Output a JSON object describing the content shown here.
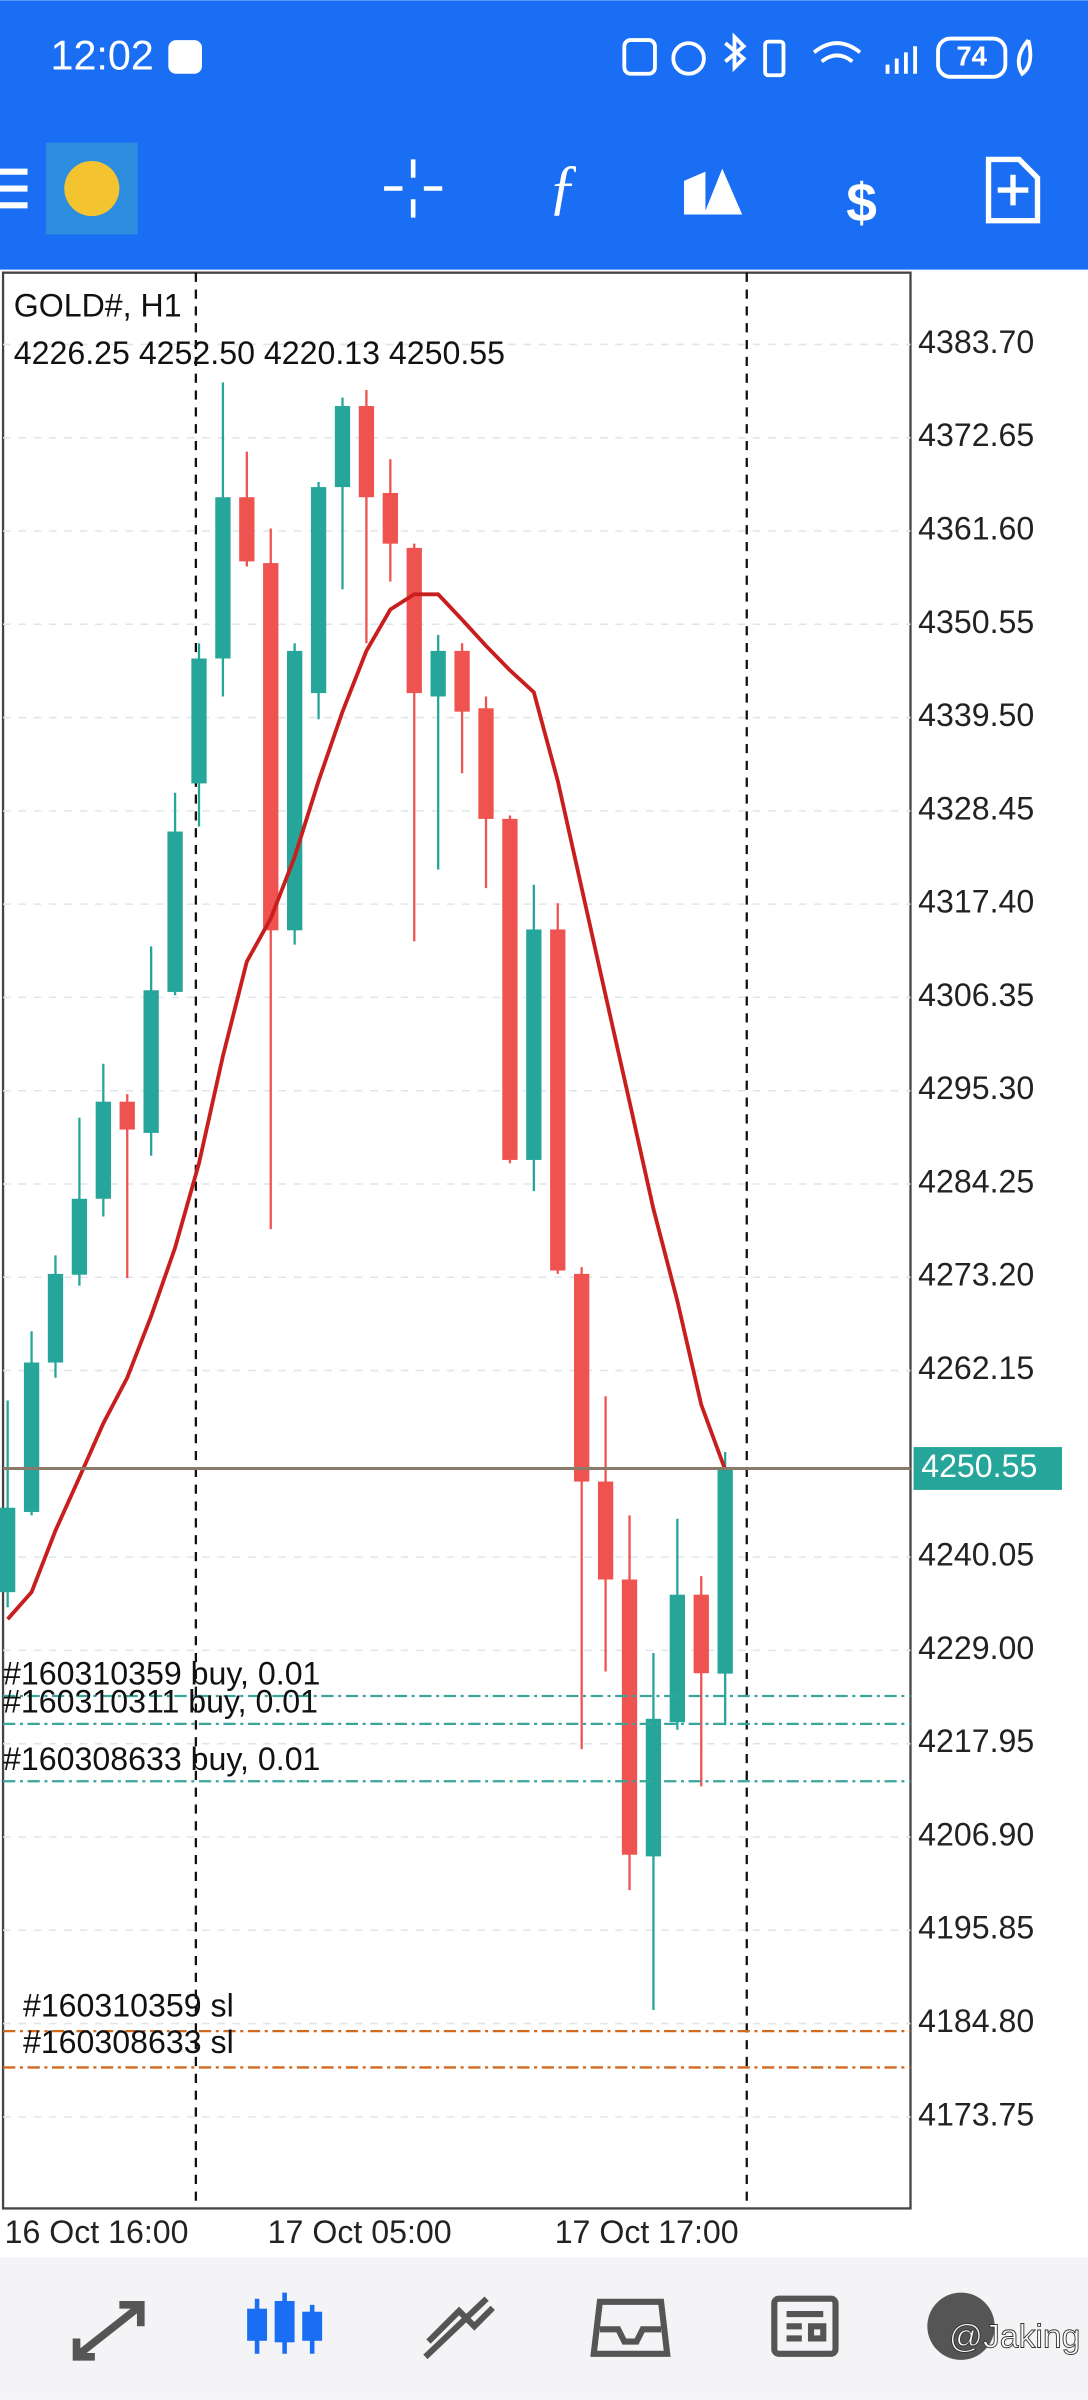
{
  "status_bar": {
    "time": "12:02",
    "battery": "74"
  },
  "watermark": "@Jaking",
  "chart_data": {
    "type": "candlestick",
    "title": "GOLD#, H1",
    "ohlc_text": "4226.25 4252.50 4220.13 4250.55",
    "categories": [
      "16 Oct 16:00",
      null,
      null,
      null,
      null,
      null,
      null,
      null,
      null,
      null,
      null,
      "17 Oct 05:00",
      null,
      null,
      null,
      null,
      null,
      null,
      null,
      null,
      null,
      null,
      null,
      "17 Oct 17:00",
      null,
      null,
      null,
      null,
      null,
      null,
      null
    ],
    "open": [
      4235.9,
      4245.4,
      4263.1,
      4273.5,
      4282.5,
      4294.0,
      4290.3,
      4307.0,
      4331.7,
      4346.5,
      4365.6,
      4357.8,
      4314.3,
      4342.4,
      4366.8,
      4376.4,
      4366.1,
      4359.6,
      4342.0,
      4347.4,
      4340.6,
      4327.5,
      4287.1,
      4314.4,
      4273.6,
      4249.0,
      4237.4,
      4204.6,
      4220.5,
      4235.6,
      4226.25
    ],
    "high": [
      4258.6,
      4266.8,
      4275.8,
      4292.1,
      4298.5,
      4294.9,
      4312.4,
      4330.6,
      4348.3,
      4379.2,
      4371.0,
      4361.9,
      4348.3,
      4367.4,
      4377.4,
      4378.3,
      4370.1,
      4360.1,
      4349.3,
      4348.3,
      4342.0,
      4327.9,
      4319.7,
      4317.5,
      4274.4,
      4259.1,
      4245.0,
      4228.7,
      4244.6,
      4237.8,
      4252.5
    ],
    "low": [
      4234.1,
      4245.0,
      4261.3,
      4272.2,
      4280.4,
      4273.1,
      4287.6,
      4306.6,
      4326.6,
      4342.0,
      4357.4,
      4278.9,
      4312.6,
      4339.3,
      4354.7,
      4348.3,
      4355.6,
      4313.0,
      4321.5,
      4332.9,
      4319.3,
      4286.7,
      4283.4,
      4273.6,
      4217.3,
      4226.5,
      4200.6,
      4186.4,
      4219.6,
      4212.9,
      4220.13
    ],
    "close": [
      4245.9,
      4263.1,
      4273.6,
      4282.5,
      4294.0,
      4290.7,
      4307.2,
      4326.0,
      4346.5,
      4365.6,
      4358.0,
      4314.3,
      4347.4,
      4366.8,
      4376.4,
      4365.6,
      4360.1,
      4342.4,
      4347.4,
      4340.2,
      4327.5,
      4287.1,
      4314.4,
      4274.0,
      4249.0,
      4237.4,
      4204.8,
      4220.9,
      4235.6,
      4226.3,
      4250.55
    ],
    "up_color": "#26a69a",
    "down_color": "#ef5350",
    "ma": {
      "color": "#c81e1e",
      "values": [
        4232.7,
        4235.9,
        4243.2,
        4249.5,
        4255.9,
        4261.3,
        4268.6,
        4276.7,
        4286.7,
        4299.4,
        4310.6,
        4315.7,
        4323.0,
        4332.0,
        4340.2,
        4347.4,
        4352.3,
        4354.1,
        4354.1,
        4351.1,
        4348.0,
        4345.1,
        4342.5,
        4332.0,
        4319.3,
        4306.6,
        4294.0,
        4281.3,
        4270.4,
        4258.1,
        4250.4
      ]
    },
    "ylim": [
      4162.9,
      4392.2
    ],
    "yticks": [
      {
        "value": 4383.7,
        "label": "4383.70"
      },
      4372.65,
      {
        "value": 4361.6,
        "label": "4361.60"
      },
      4350.55,
      {
        "value": 4339.5,
        "label": "4339.50"
      },
      4328.45,
      {
        "value": 4317.4,
        "label": "4317.40"
      },
      4306.35,
      {
        "value": 4295.3,
        "label": "4295.30"
      },
      4284.25,
      {
        "value": 4273.2,
        "label": "4273.20"
      },
      4262.15,
      4240.05,
      {
        "value": 4229,
        "label": "4229.00"
      },
      4217.95,
      {
        "value": 4206.9,
        "label": "4206.90"
      },
      4195.85,
      {
        "value": 4184.8,
        "label": "4184.80"
      },
      4173.75
    ],
    "grid": true,
    "current_price": 4250.55,
    "orders": [
      {
        "label": "#160310359 buy, 0.01",
        "price": 4223.6
      },
      {
        "label": "#160310311 buy, 0.01",
        "price": 4220.3
      },
      {
        "label": "#160308633 buy, 0.01",
        "price": 4213.5
      }
    ],
    "stop_losses": [
      {
        "label": "#160310359 sl",
        "price": 4183.9
      },
      {
        "label": "#160308633 sl",
        "price": 4179.6
      }
    ]
  }
}
